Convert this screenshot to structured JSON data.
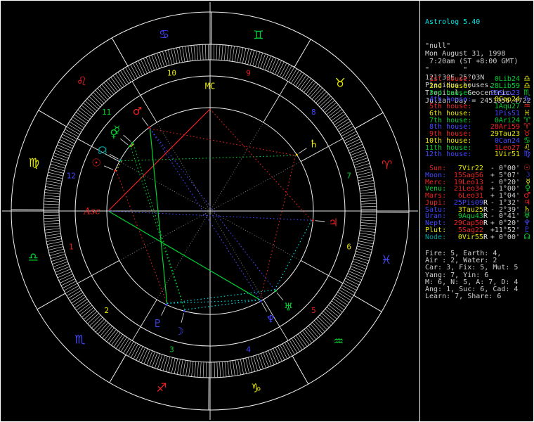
{
  "palette": {
    "red": "#ee2222",
    "green": "#00d030",
    "yellow": "#e8e800",
    "blue": "#4646ff",
    "cyan": "#00e0e0",
    "teal": "#00a0a0",
    "white": "#ffffff",
    "gray": "#8a8a8a",
    "text": "#cfcfcf",
    "title": "#00e5e5"
  },
  "panel": {
    "title": "Astrolog 5.40",
    "header_lines": [
      "\"null\"",
      "Mon August 31, 1998",
      " 7:20am (ST +8:00 GMT)",
      "\"        \"",
      "121°30E 25°03N",
      "Placidus houses.",
      "Tropical, Geocentric.",
      "Julian Day = 2451056.4722"
    ],
    "houses": [
      {
        "label": " 1st house:",
        "label_color": "red",
        "value": " 0Lib24",
        "value_color": "green",
        "glyph": "♎",
        "glyph_color": "yellow"
      },
      {
        "label": " 2nd house:",
        "label_color": "yellow",
        "value": "28Lib59",
        "value_color": "green",
        "glyph": "♎",
        "glyph_color": "yellow"
      },
      {
        "label": " 3rd house:",
        "label_color": "green",
        "value": "29Sco23",
        "value_color": "blue",
        "glyph": "♏",
        "glyph_color": "green"
      },
      {
        "label": " 4th house:",
        "label_color": "blue",
        "value": " 0Cap24",
        "value_color": "yellow",
        "glyph": "♑",
        "glyph_color": "blue"
      },
      {
        "label": " 5th house:",
        "label_color": "red",
        "value": " 1Aqu27",
        "value_color": "green",
        "glyph": "♒",
        "glyph_color": "red"
      },
      {
        "label": " 6th house:",
        "label_color": "yellow",
        "value": " 1Pis51",
        "value_color": "blue",
        "glyph": "♓",
        "glyph_color": "yellow"
      },
      {
        "label": " 7th house:",
        "label_color": "green",
        "value": " 0Ari24",
        "value_color": "green",
        "glyph": "♈",
        "glyph_color": "green"
      },
      {
        "label": " 8th house:",
        "label_color": "blue",
        "value": "28Ari59",
        "value_color": "red",
        "glyph": "♈",
        "glyph_color": "red"
      },
      {
        "label": " 9th house:",
        "label_color": "red",
        "value": "29Tau23",
        "value_color": "yellow",
        "glyph": "♉",
        "glyph_color": "red"
      },
      {
        "label": "10th house:",
        "label_color": "yellow",
        "value": " 0Can24",
        "value_color": "blue",
        "glyph": "♋",
        "glyph_color": "green"
      },
      {
        "label": "11th house:",
        "label_color": "green",
        "value": " 1Leo27",
        "value_color": "red",
        "glyph": "♌",
        "glyph_color": "yellow"
      },
      {
        "label": "12th house:",
        "label_color": "blue",
        "value": " 1Vir51",
        "value_color": "yellow",
        "glyph": "♍",
        "glyph_color": "blue"
      }
    ],
    "planets": [
      {
        "label": " Sun:",
        "label_color": "red",
        "value": " 7Vir22",
        "retro": "",
        "value_color": "yellow",
        "delta": "- 0°00'",
        "glyph": "☉",
        "glyph_color": "red"
      },
      {
        "label": "Moon:",
        "label_color": "blue",
        "value": "15Sag56",
        "retro": "",
        "value_color": "red",
        "delta": "+ 5°07'",
        "glyph": "☽",
        "glyph_color": "blue"
      },
      {
        "label": "Merc:",
        "label_color": "red",
        "value": "19Leo13",
        "retro": "",
        "value_color": "red",
        "delta": "- 0°20'",
        "glyph": "☿",
        "glyph_color": "yellow"
      },
      {
        "label": "Venu:",
        "label_color": "green",
        "value": "21Leo34",
        "retro": "",
        "value_color": "red",
        "delta": "+ 1°00'",
        "glyph": "♀",
        "glyph_color": "green"
      },
      {
        "label": "Mars:",
        "label_color": "red",
        "value": " 6Leo31",
        "retro": "",
        "value_color": "red",
        "delta": "+ 1°04'",
        "glyph": "♂",
        "glyph_color": "red"
      },
      {
        "label": "Jupi:",
        "label_color": "red",
        "value": "25Pis09",
        "retro": "R",
        "value_color": "blue",
        "delta": "- 1°32'",
        "glyph": "♃",
        "glyph_color": "red"
      },
      {
        "label": "Satu:",
        "label_color": "blue",
        "value": " 3Tau25",
        "retro": "R",
        "value_color": "yellow",
        "delta": "- 2°39'",
        "glyph": "♄",
        "glyph_color": "yellow"
      },
      {
        "label": "Uran:",
        "label_color": "blue",
        "value": " 9Aqu43",
        "retro": "R",
        "value_color": "green",
        "delta": "- 0°41'",
        "glyph": "♅",
        "glyph_color": "green"
      },
      {
        "label": "Nept:",
        "label_color": "blue",
        "value": "29Cap50",
        "retro": "R",
        "value_color": "red",
        "delta": "+ 0°20'",
        "glyph": "♆",
        "glyph_color": "blue"
      },
      {
        "label": "Plut:",
        "label_color": "yellow",
        "value": " 5Sag22",
        "retro": "",
        "value_color": "red",
        "delta": "+11°52'",
        "glyph": "♇",
        "glyph_color": "blue"
      },
      {
        "label": "Node:",
        "label_color": "teal",
        "value": " 0Vir55",
        "retro": "R",
        "value_color": "yellow",
        "delta": "+ 0°00'",
        "glyph": "☊",
        "glyph_color": "green"
      }
    ],
    "stats": [
      "Fire: 5, Earth: 4,",
      "Air : 2, Water: 2",
      "Car: 3, Fix: 5, Mut: 5",
      "Yang: 7, Yin: 6",
      "M: 6, N: 5, A: 7, D: 4",
      "Ang: 1, Suc: 6, Cad: 4",
      "Learn: 7, Share: 6"
    ]
  },
  "wheel": {
    "ascendant_deg": 180.4,
    "labels": {
      "asc": "Asc",
      "mc": "MC"
    },
    "signs": [
      {
        "name": "aries",
        "glyph": "♈",
        "color": "red"
      },
      {
        "name": "taurus",
        "glyph": "♉",
        "color": "yellow"
      },
      {
        "name": "gemini",
        "glyph": "♊",
        "color": "green"
      },
      {
        "name": "cancer",
        "glyph": "♋",
        "color": "blue"
      },
      {
        "name": "leo",
        "glyph": "♌",
        "color": "red"
      },
      {
        "name": "virgo",
        "glyph": "♍",
        "color": "yellow"
      },
      {
        "name": "libra",
        "glyph": "♎",
        "color": "green"
      },
      {
        "name": "scorpio",
        "glyph": "♏",
        "color": "blue"
      },
      {
        "name": "sagittarius",
        "glyph": "♐",
        "color": "red"
      },
      {
        "name": "capricorn",
        "glyph": "♑",
        "color": "yellow"
      },
      {
        "name": "aquarius",
        "glyph": "♒",
        "color": "green"
      },
      {
        "name": "pisces",
        "glyph": "♓",
        "color": "blue"
      }
    ],
    "house_cusps_deg": [
      180.4,
      208.98,
      239.38,
      270.4,
      301.45,
      331.85,
      0.4,
      28.98,
      59.38,
      90.4,
      121.45,
      151.85
    ],
    "house_number_colors": [
      "red",
      "yellow",
      "green",
      "blue",
      "red",
      "yellow",
      "green",
      "blue",
      "red",
      "yellow",
      "green",
      "blue"
    ],
    "planets": [
      {
        "name": "sun",
        "glyph": "☉",
        "color": "red",
        "lon": 157.37
      },
      {
        "name": "moon",
        "glyph": "☽",
        "color": "blue",
        "lon": 255.93
      },
      {
        "name": "mercury",
        "glyph": "☿",
        "color": "green",
        "lon": 139.22
      },
      {
        "name": "venus",
        "glyph": "♀",
        "color": "green",
        "lon": 141.57
      },
      {
        "name": "mars",
        "glyph": "♂",
        "color": "red",
        "lon": 126.52
      },
      {
        "name": "jupiter",
        "glyph": "♃",
        "color": "red",
        "lon": 355.15
      },
      {
        "name": "saturn",
        "glyph": "♄",
        "color": "yellow",
        "lon": 33.42
      },
      {
        "name": "uranus",
        "glyph": "♅",
        "color": "green",
        "lon": 309.72
      },
      {
        "name": "neptune",
        "glyph": "♆",
        "color": "blue",
        "lon": 299.83
      },
      {
        "name": "pluto",
        "glyph": "♇",
        "color": "blue",
        "lon": 245.37
      },
      {
        "name": "node",
        "glyph": "☊",
        "color": "teal",
        "lon": 150.92
      }
    ],
    "points": [
      {
        "name": "asc",
        "label": "Asc",
        "color": "red",
        "lon": 180.4
      },
      {
        "name": "mc",
        "label": "MC",
        "color": "yellow",
        "lon": 90.4
      }
    ],
    "aspects": [
      {
        "a": "mc",
        "b": "asc",
        "type": "square",
        "color": "red",
        "style": "solid"
      },
      {
        "a": "mars",
        "b": "pluto",
        "type": "trine",
        "color": "green",
        "style": "solid"
      },
      {
        "a": "asc",
        "b": "neptune",
        "type": "trine",
        "color": "green",
        "style": "solid"
      },
      {
        "a": "mercury",
        "b": "venus",
        "type": "conjunction",
        "color": "yellow",
        "style": "solid"
      },
      {
        "a": "sun",
        "b": "node",
        "type": "conjunction",
        "color": "yellow",
        "style": "dotted"
      },
      {
        "a": "moon",
        "b": "mercury",
        "type": "trine",
        "color": "green",
        "style": "dotted"
      },
      {
        "a": "moon",
        "b": "venus",
        "type": "trine",
        "color": "green",
        "style": "dotted"
      },
      {
        "a": "node",
        "b": "saturn",
        "type": "trine",
        "color": "green",
        "style": "dotted"
      },
      {
        "a": "mars",
        "b": "saturn",
        "type": "square",
        "color": "red",
        "style": "dotted"
      },
      {
        "a": "mc",
        "b": "jupiter",
        "type": "square",
        "color": "red",
        "style": "dotted"
      },
      {
        "a": "sun",
        "b": "pluto",
        "type": "square",
        "color": "red",
        "style": "dotted"
      },
      {
        "a": "saturn",
        "b": "neptune",
        "type": "square",
        "color": "red",
        "style": "dotted"
      },
      {
        "a": "mars",
        "b": "uranus",
        "type": "opposition",
        "color": "blue",
        "style": "dotted"
      },
      {
        "a": "mars",
        "b": "neptune",
        "type": "opposition",
        "color": "blue",
        "style": "dotted"
      },
      {
        "a": "jupiter",
        "b": "asc",
        "type": "opposition",
        "color": "blue",
        "style": "dotted"
      },
      {
        "a": "pluto",
        "b": "uranus",
        "type": "sextile",
        "color": "cyan",
        "style": "dotted"
      },
      {
        "a": "pluto",
        "b": "neptune",
        "type": "sextile",
        "color": "cyan",
        "style": "dotted"
      },
      {
        "a": "moon",
        "b": "neptune",
        "type": "semisquare",
        "color": "cyan",
        "style": "dotted"
      },
      {
        "a": "jupiter",
        "b": "uranus",
        "type": "semisquare",
        "color": "cyan",
        "style": "dotted"
      }
    ]
  }
}
